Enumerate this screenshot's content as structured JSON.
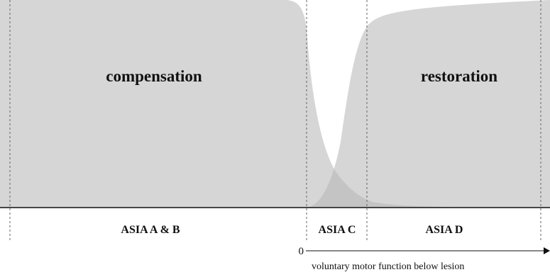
{
  "regions": {
    "compensation": "compensation",
    "restoration": "restoration"
  },
  "asia": {
    "ab": "ASIA A & B",
    "c": "ASIA C",
    "d": "ASIA D"
  },
  "axis": {
    "origin": "0",
    "label": "voluntary motor function below lesion"
  },
  "colors": {
    "area_fill": "#d6d6d6",
    "overlap_fill": "#c4c4c4",
    "line": "#111111",
    "divider": "#666666"
  }
}
